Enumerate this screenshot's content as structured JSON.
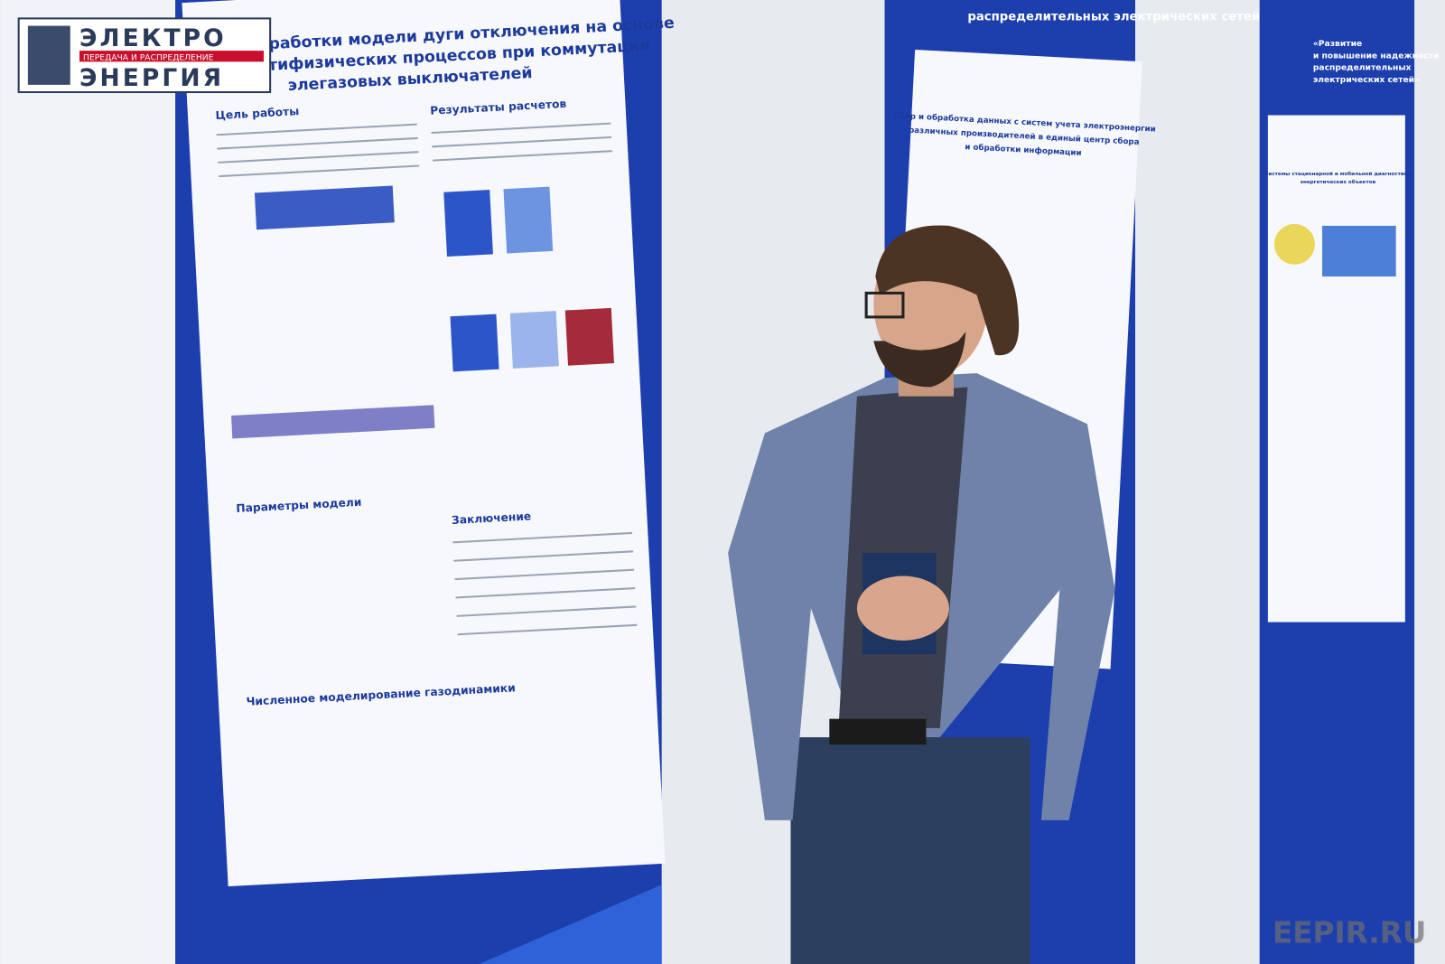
{
  "logo": {
    "line1": "ЭЛЕКТРО",
    "line2": "ПЕРЕДАЧА И РАСПРЕДЕЛЕНИЕ",
    "line3": "ЭНЕРГИЯ"
  },
  "posters": [
    {
      "title_lines": [
        "К вопросу разработки модели дуги отключения на основе",
        "учета мультифизических процессов при коммутации",
        "элегазовых выключателей"
      ],
      "sections": [
        "Цель работы",
        "Результаты расчетов",
        "Параметры модели",
        "Численное моделирование газодинамики",
        "Заключение"
      ]
    },
    {
      "header": "распределительных электрических сетей»",
      "title_lines": [
        "Сбор и обработка данных с систем учета электроэнергии",
        "различных производителей в единый центр сбора",
        "и обработки информации"
      ]
    },
    {
      "header_lines": [
        "«Развитие",
        "и повышение надежности",
        "распределительных",
        "электрических сетей»"
      ],
      "title_lines": [
        "Системы стационарной и мобильной диагностики",
        "энергетических объектов"
      ]
    }
  ],
  "watermark": "EEPIR.RU"
}
